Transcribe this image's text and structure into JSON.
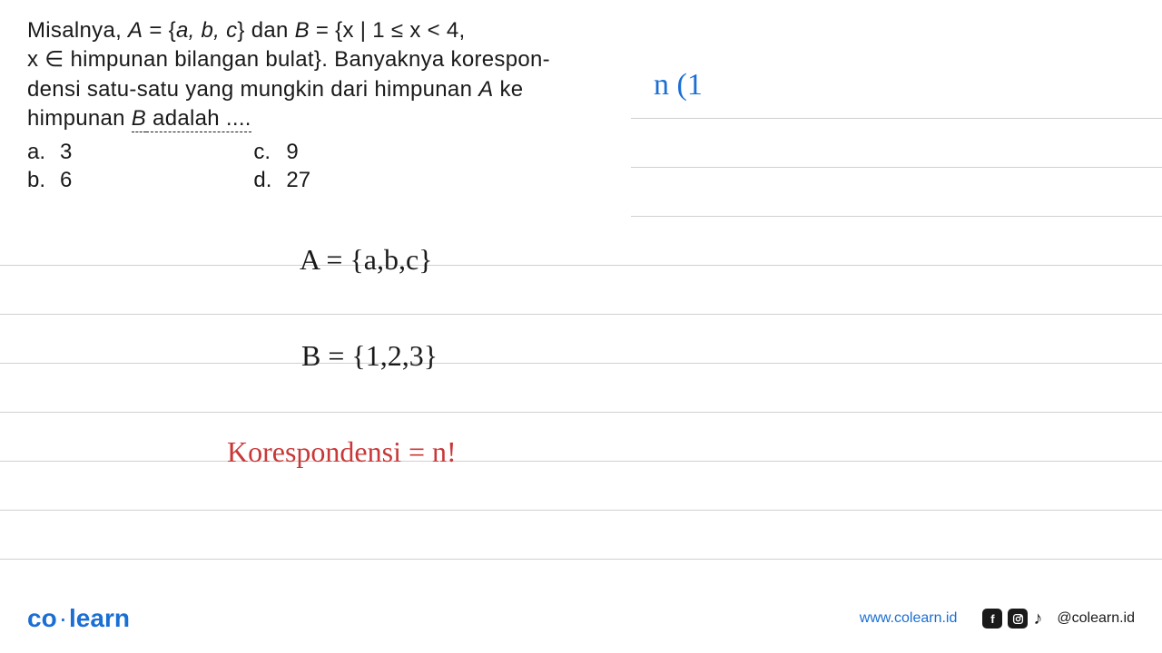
{
  "question": {
    "line1_pre": "Misalnya, ",
    "line1_setA_var": "A",
    "line1_eq": " = {",
    "line1_setA_elems": "a, b, c",
    "line1_setA_close": "} dan ",
    "line1_setB_var": "B",
    "line1_setB_def": " = {x | 1 ≤ x < 4,",
    "line2": "x ∈ himpunan bilangan bulat}. Banyaknya korespon-",
    "line3_pre": "densi satu-satu yang mungkin dari himpunan ",
    "line3_A": "A",
    "line3_mid": " ke",
    "line4_pre": "himpunan ",
    "line4_B": "B",
    "line4_post": " adalah ....",
    "options": {
      "a": {
        "label": "a.",
        "value": "3"
      },
      "b": {
        "label": "b.",
        "value": "6"
      },
      "c": {
        "label": "c.",
        "value": "9"
      },
      "d": {
        "label": "d.",
        "value": "27"
      }
    }
  },
  "annotations": {
    "blue_note": "n (1",
    "work_a": "A = {a,b,c}",
    "work_b": "B = {1,2,3}",
    "red_note": "Korespondensi = n!"
  },
  "ruled_lines": {
    "positions": [
      130,
      184,
      238,
      292,
      346,
      400,
      454,
      508,
      562,
      616
    ],
    "short_start": 695,
    "short_count": 3,
    "color": "#d0d0d0"
  },
  "footer": {
    "logo_left": "co",
    "logo_dot": "·",
    "logo_right": "learn",
    "url": "www.colearn.id",
    "handle": "@colearn.id"
  },
  "colors": {
    "text": "#1a1a1a",
    "blue": "#1a6fd4",
    "red": "#c93838",
    "line": "#d0d0d0",
    "bg": "#ffffff"
  },
  "typography": {
    "question_fontsize": 24,
    "annotation_fontsize": 32,
    "blue_fontsize": 34,
    "footer_fontsize": 16,
    "logo_fontsize": 28
  }
}
